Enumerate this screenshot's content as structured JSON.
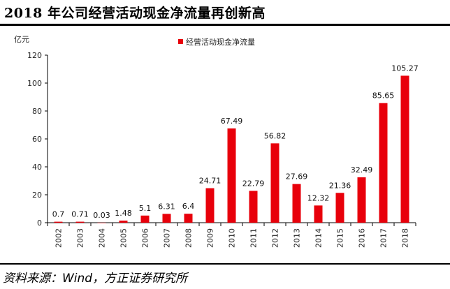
{
  "title": "2018 年公司经营活动现金净流量再创新高",
  "source": "资料来源：Wind，方正证券研究所",
  "chart_data": {
    "type": "bar",
    "title": "",
    "ylabel": "亿元",
    "xlabel": "",
    "categories": [
      "2002",
      "2003",
      "2004",
      "2005",
      "2006",
      "2007",
      "2008",
      "2009",
      "2010",
      "2011",
      "2012",
      "2013",
      "2014",
      "2015",
      "2016",
      "2017",
      "2018"
    ],
    "series": [
      {
        "name": "经营活动现金净流量",
        "values": [
          0.7,
          0.71,
          0.03,
          1.48,
          5.1,
          6.31,
          6.4,
          24.71,
          67.49,
          22.79,
          56.82,
          27.69,
          12.32,
          21.36,
          32.49,
          85.65,
          105.27
        ],
        "labels": [
          "0.7",
          "0.71",
          "0.03",
          "1.48",
          "5.1",
          "6.31",
          "6.4",
          "24.71",
          "67.49",
          "22.79",
          "56.82",
          "27.69",
          "12.32",
          "21.36",
          "32.49",
          "85.65",
          "105.27"
        ],
        "color": "#e8000b"
      }
    ],
    "ylim": [
      0,
      120
    ],
    "yticks": [
      "0",
      "20",
      "40",
      "60",
      "80",
      "100",
      "120"
    ],
    "grid": false,
    "legend": "top-center"
  }
}
